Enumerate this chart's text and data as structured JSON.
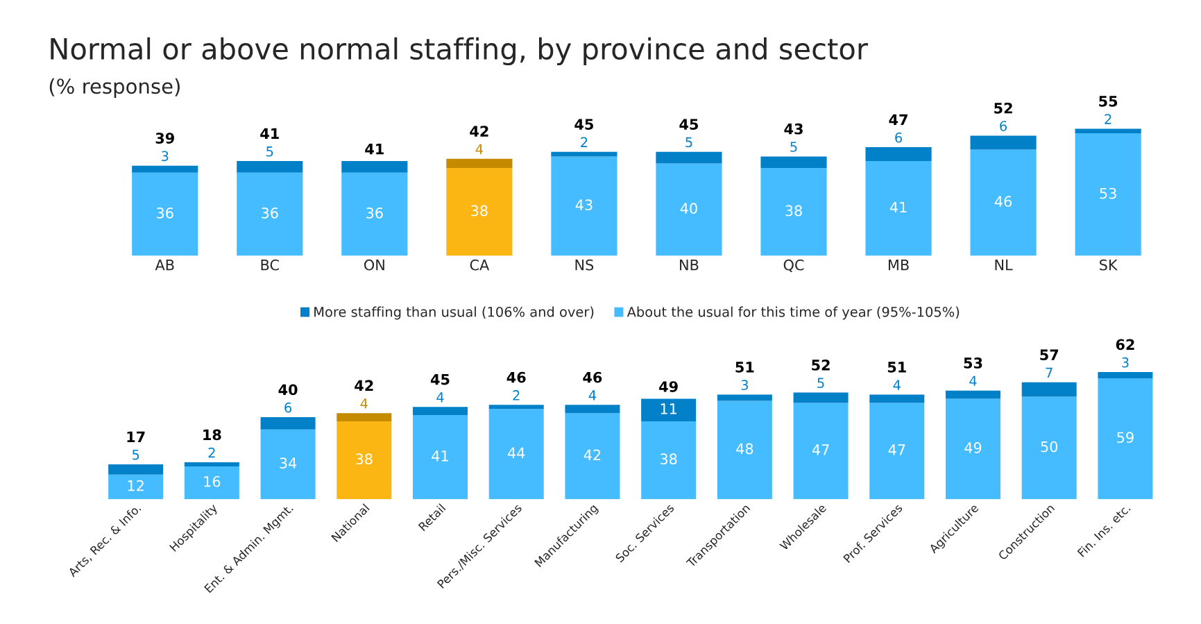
{
  "chart_data": [
    {
      "type": "bar",
      "title": "Normal or above normal staffing, by province and sector",
      "subtitle": "(% response)",
      "stacked": true,
      "tick_labels": "x",
      "categories": [
        "AB",
        "BC",
        "ON",
        "CA",
        "NS",
        "NB",
        "QC",
        "MB",
        "NL",
        "SK"
      ],
      "series": [
        {
          "colors": [
            "#45bcff",
            "#45bcff",
            "#45bcff",
            "#fbb614",
            "#45bcff",
            "#45bcff",
            "#45bcff",
            "#45bcff",
            "#45bcff",
            "#45bcff"
          ],
          "values": [
            36,
            36,
            36,
            38,
            43,
            40,
            38,
            41,
            46,
            53
          ],
          "value_labels": [
            "36",
            "36",
            "36",
            "38",
            "43",
            "40",
            "38",
            "41",
            "46",
            "53"
          ]
        },
        {
          "colors": [
            "#0280c8",
            "#0280c8",
            "#0280c8",
            "#c48a00",
            "#0280c8",
            "#0280c8",
            "#0280c8",
            "#0280c8",
            "#0280c8",
            "#0280c8"
          ],
          "values": [
            3,
            5,
            5,
            4,
            2,
            5,
            5,
            6,
            6,
            2
          ],
          "value_labels": [
            "3",
            "5",
            null,
            "4",
            "2",
            "5",
            "5",
            "6",
            "6",
            "2"
          ]
        }
      ],
      "totals": [
        "39",
        "41",
        "41",
        "42",
        "45",
        "45",
        "43",
        "47",
        "52",
        "55"
      ]
    },
    {
      "type": "bar",
      "stacked": true,
      "tick_labels": "x",
      "data_labels": true,
      "legend": "top",
      "categories": [
        "Arts, Rec. & Info.",
        "Hospitality",
        "Ent. & Admin. Mgmt.",
        "National",
        "Retail",
        "Pers./Misc. Services",
        "Manufacturing",
        "Soc. Services",
        "Transportation",
        "Wholesale",
        "Prof. Services",
        "Agriculture",
        "Construction",
        "Fin. Ins. etc."
      ],
      "series": [
        {
          "name": "About the usual for this time of year (95%-105%)",
          "color": "#45bcff",
          "colors": [
            "#45bcff",
            "#45bcff",
            "#45bcff",
            "#fbb614",
            "#45bcff",
            "#45bcff",
            "#45bcff",
            "#45bcff",
            "#45bcff",
            "#45bcff",
            "#45bcff",
            "#45bcff",
            "#45bcff",
            "#45bcff"
          ],
          "values": [
            12,
            16,
            34,
            38,
            41,
            44,
            42,
            38,
            48,
            47,
            47,
            49,
            50,
            59
          ]
        },
        {
          "name": "More staffing than usual (106% and over)",
          "color": "#0280c8",
          "colors": [
            "#0280c8",
            "#0280c8",
            "#0280c8",
            "#c48a00",
            "#0280c8",
            "#0280c8",
            "#0280c8",
            "#0280c8",
            "#0280c8",
            "#0280c8",
            "#0280c8",
            "#0280c8",
            "#0280c8",
            "#0280c8"
          ],
          "values": [
            5,
            2,
            6,
            4,
            4,
            2,
            4,
            11,
            3,
            5,
            4,
            4,
            7,
            3
          ]
        }
      ],
      "totals": [
        "17",
        "18",
        "40",
        "42",
        "45",
        "46",
        "46",
        "49",
        "51",
        "52",
        "51",
        "53",
        "57",
        "62"
      ]
    }
  ]
}
